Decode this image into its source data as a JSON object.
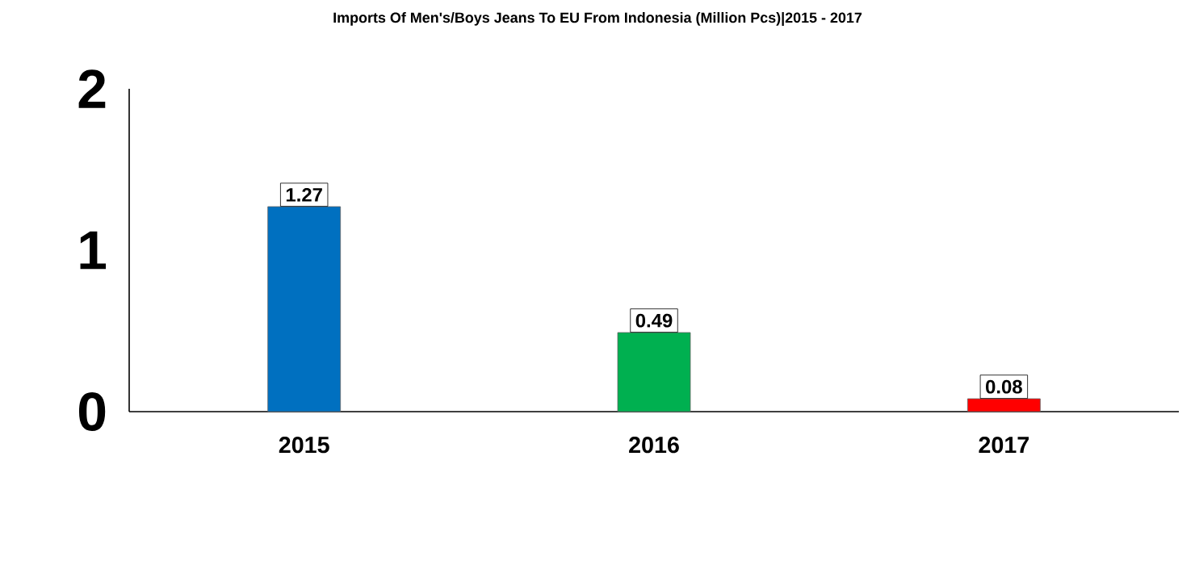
{
  "chart_data": {
    "type": "bar",
    "title": "Imports Of Men's/Boys Jeans To EU From Indonesia (Million Pcs)|2015 - 2017",
    "categories": [
      "2015",
      "2016",
      "2017"
    ],
    "values": [
      1.27,
      0.49,
      0.08
    ],
    "colors": [
      "#0070c0",
      "#00b050",
      "#ff0000"
    ],
    "ylim": [
      0,
      2
    ],
    "yticks": [
      0,
      1,
      2
    ],
    "data_labels": true
  }
}
